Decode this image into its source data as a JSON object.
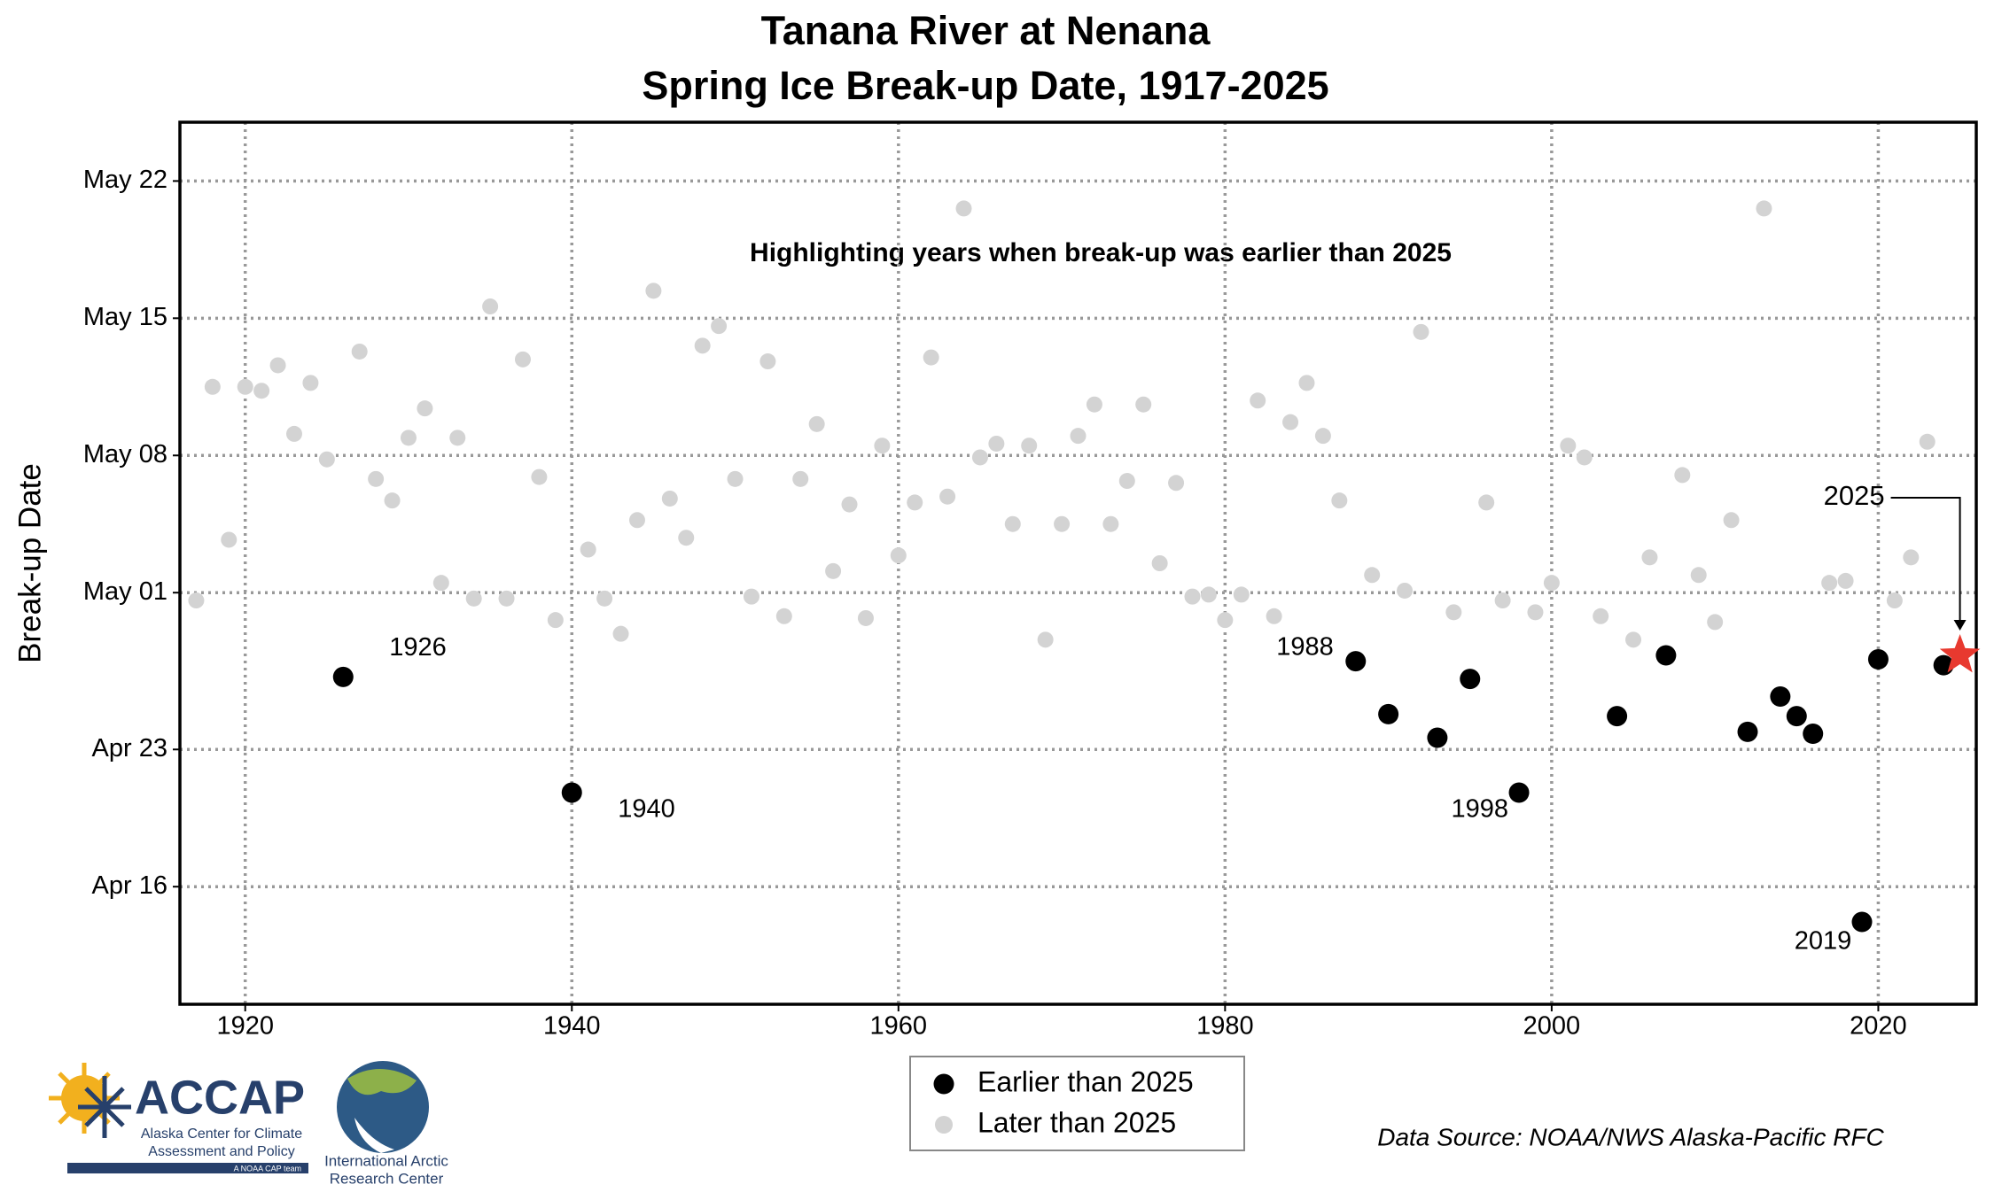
{
  "chart_data": {
    "type": "scatter",
    "title": [
      "Tanana River at Nenana",
      "Spring Ice Break-up Date, 1917-2025"
    ],
    "subtitle": "Highlighting years when break-up was earlier than 2025",
    "y_label": "Break-up Date",
    "source": "Data Source: NOAA/NWS Alaska-Pacific RFC",
    "xlim": [
      1916,
      2026
    ],
    "xticks": [
      1920,
      1940,
      1960,
      1980,
      2000,
      2020
    ],
    "ylim": [
      100,
      145
    ],
    "yticks": [
      {
        "value": 106,
        "label": "Apr 16"
      },
      {
        "value": 113,
        "label": "Apr 23"
      },
      {
        "value": 121,
        "label": "May 01"
      },
      {
        "value": 128,
        "label": "May 08"
      },
      {
        "value": 135,
        "label": "May 15"
      },
      {
        "value": 142,
        "label": "May 22"
      }
    ],
    "grid": true,
    "legend": "bottom",
    "series": [
      {
        "name": "Earlier than 2025",
        "color": "#000000",
        "x": [
          1926,
          1940,
          1988,
          1990,
          1993,
          1995,
          1998,
          2004,
          2007,
          2012,
          2014,
          2015,
          2016,
          2019,
          2020,
          2024
        ],
        "values": [
          116.7,
          110.8,
          117.5,
          114.8,
          113.6,
          116.6,
          110.8,
          114.7,
          117.8,
          113.9,
          115.7,
          114.7,
          113.8,
          104.2,
          117.6,
          117.3
        ],
        "labels": [
          "1926",
          "1940",
          "1988",
          null,
          null,
          null,
          "1998",
          null,
          null,
          null,
          null,
          null,
          null,
          "2019",
          null,
          null
        ]
      },
      {
        "name": "Later than 2025",
        "color": "#d3d3d3",
        "x": [
          1917,
          1918,
          1919,
          1920,
          1921,
          1922,
          1923,
          1924,
          1925,
          1927,
          1928,
          1929,
          1930,
          1931,
          1932,
          1933,
          1934,
          1935,
          1936,
          1937,
          1938,
          1939,
          1941,
          1942,
          1943,
          1944,
          1945,
          1946,
          1947,
          1948,
          1949,
          1950,
          1951,
          1952,
          1953,
          1954,
          1955,
          1956,
          1957,
          1958,
          1959,
          1960,
          1961,
          1962,
          1963,
          1964,
          1965,
          1966,
          1967,
          1968,
          1969,
          1970,
          1971,
          1972,
          1973,
          1974,
          1975,
          1976,
          1977,
          1978,
          1979,
          1980,
          1981,
          1982,
          1983,
          1984,
          1985,
          1986,
          1987,
          1989,
          1991,
          1992,
          1994,
          1996,
          1997,
          1999,
          2000,
          2001,
          2002,
          2003,
          2005,
          2006,
          2008,
          2009,
          2010,
          2011,
          2013,
          2017,
          2018,
          2021,
          2022,
          2023
        ],
        "values": [
          120.6,
          131.5,
          123.7,
          131.5,
          131.3,
          132.6,
          129.1,
          131.7,
          127.8,
          133.3,
          126.8,
          125.7,
          128.9,
          130.4,
          121.5,
          128.9,
          120.7,
          135.6,
          120.7,
          132.9,
          126.9,
          119.6,
          123.2,
          120.7,
          118.9,
          124.7,
          136.4,
          125.8,
          123.8,
          133.6,
          134.6,
          126.8,
          120.8,
          132.8,
          119.8,
          126.8,
          129.6,
          122.1,
          125.5,
          119.7,
          128.5,
          122.9,
          125.6,
          133.0,
          125.9,
          140.6,
          127.9,
          128.6,
          124.5,
          128.5,
          118.6,
          124.5,
          129.0,
          130.6,
          124.5,
          126.7,
          130.6,
          122.5,
          126.6,
          120.8,
          120.9,
          119.6,
          120.9,
          130.8,
          119.8,
          129.7,
          131.7,
          129.0,
          125.7,
          121.9,
          121.1,
          134.3,
          120.0,
          125.6,
          120.6,
          120.0,
          121.5,
          128.5,
          127.9,
          119.8,
          118.6,
          122.8,
          127.0,
          121.9,
          119.5,
          124.7,
          140.6,
          121.5,
          121.6,
          120.6,
          122.8,
          128.7
        ]
      }
    ],
    "highlight": {
      "x": 2025,
      "value": 117.8,
      "label": "2025",
      "color": "#e8392f"
    }
  },
  "logos": {
    "accap": "ACCAP",
    "accap_lines": [
      "Alaska Center for Climate",
      "Assessment and Policy"
    ],
    "accap_tag": "A NOAA CAP team",
    "iarc_lines": [
      "International Arctic",
      "Research Center"
    ]
  }
}
